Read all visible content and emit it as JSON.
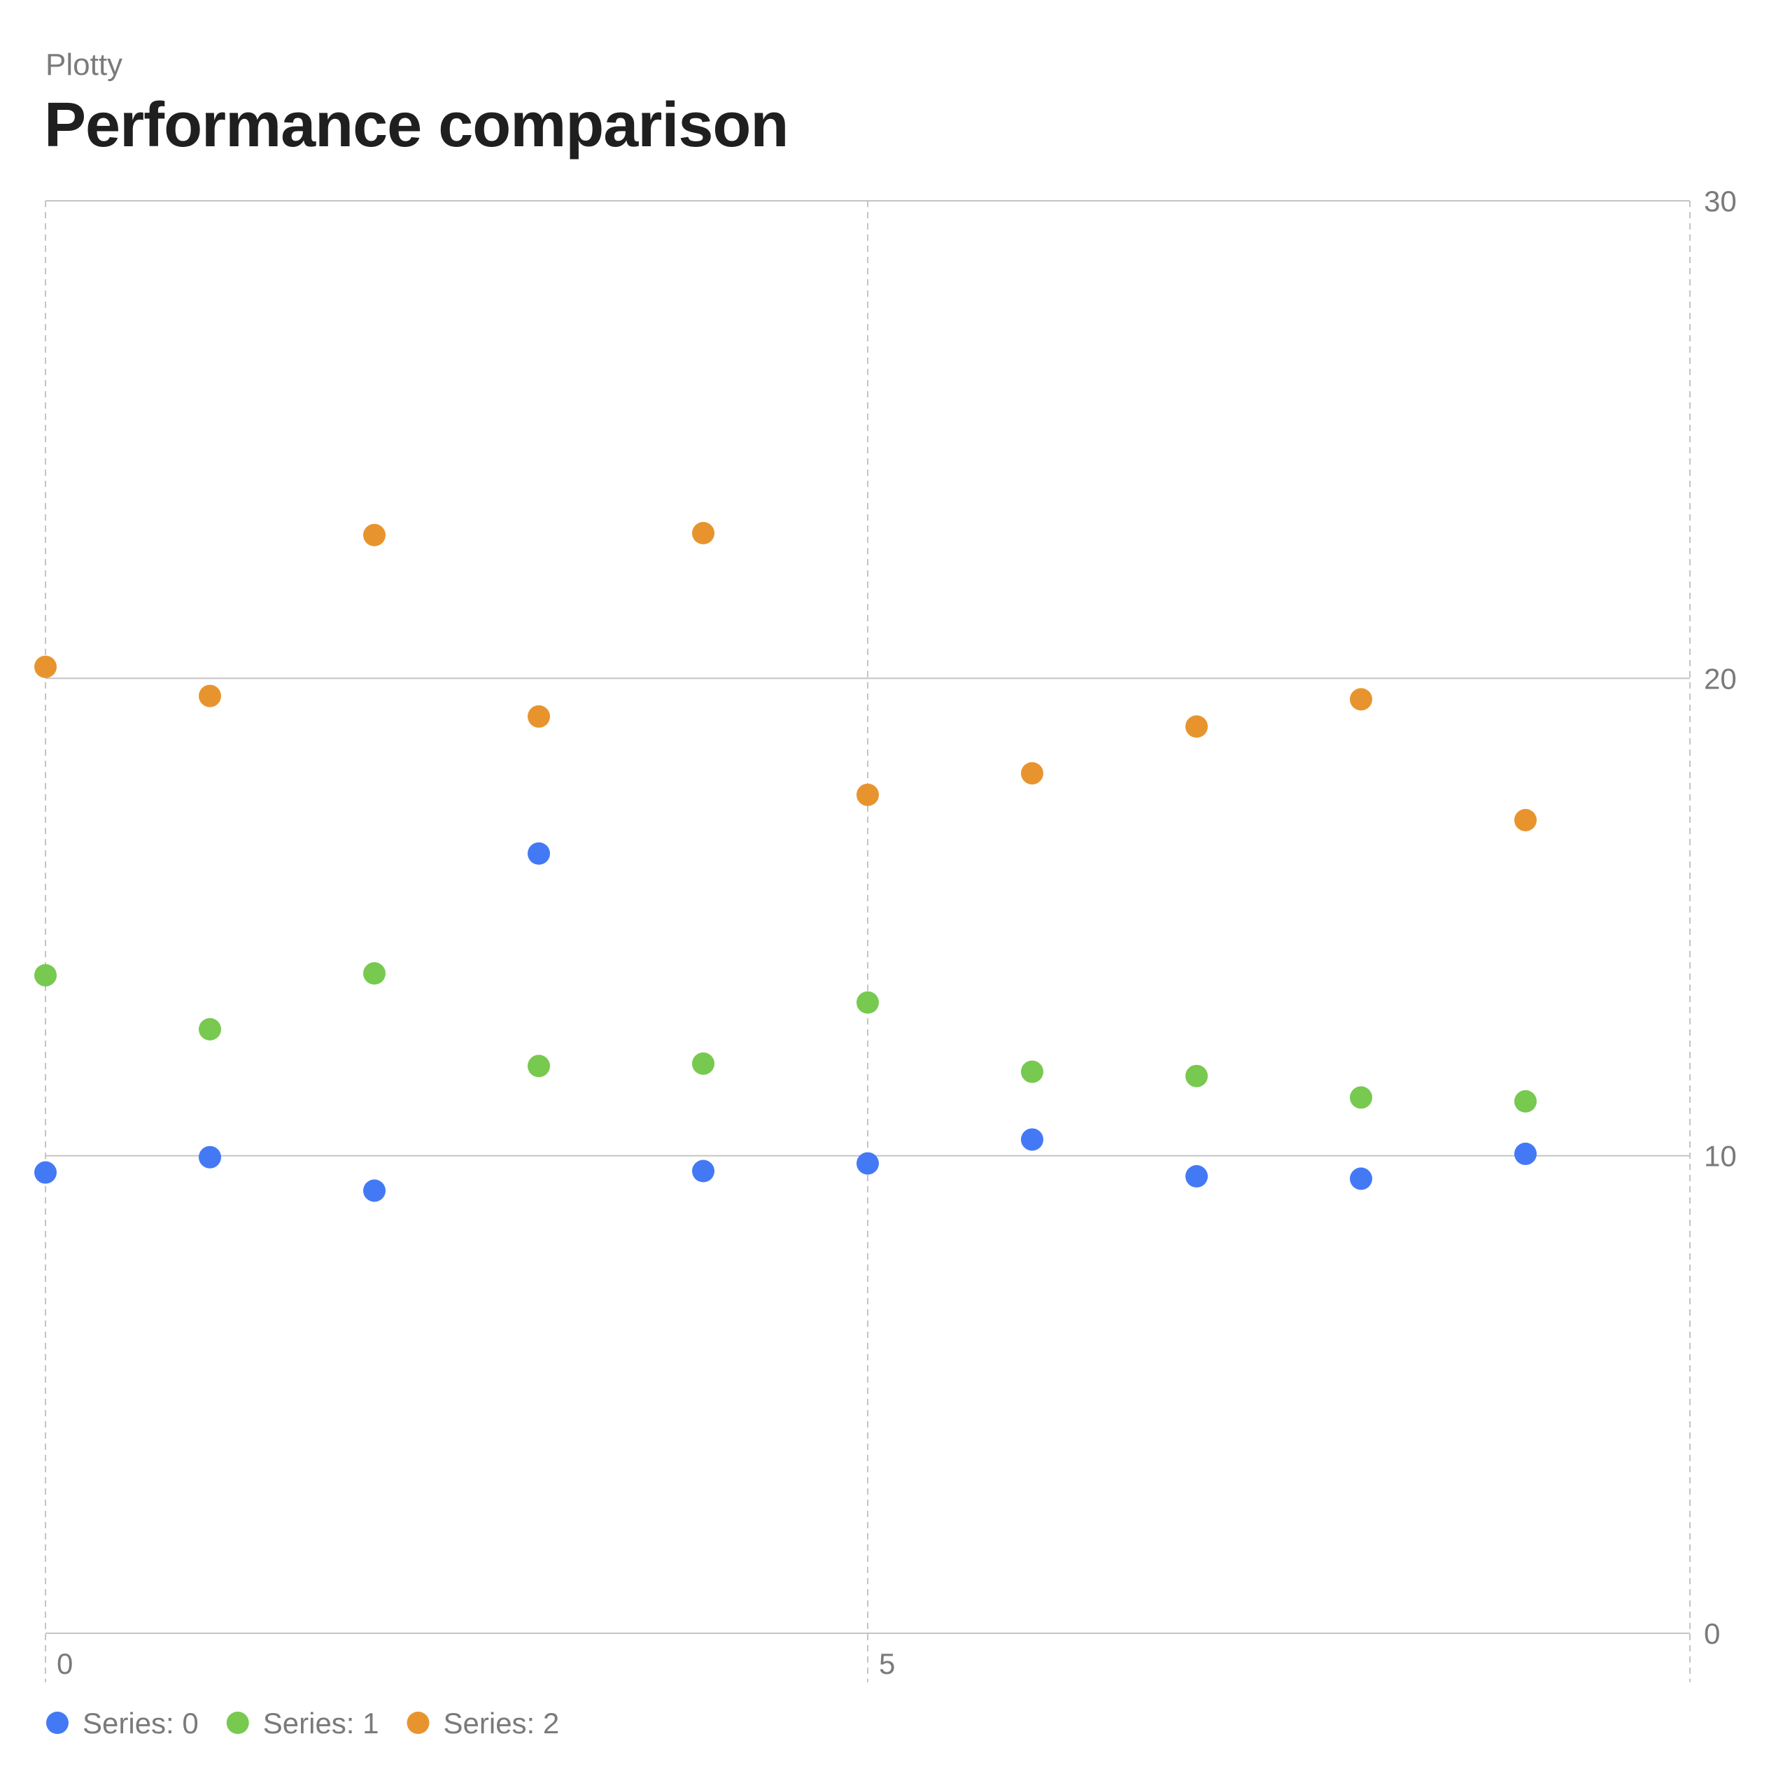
{
  "header": {
    "kicker": "Plotty",
    "title": "Performance comparison"
  },
  "chart_data": {
    "type": "scatter",
    "title": "Performance comparison",
    "xlabel": "",
    "ylabel": "",
    "xlim": [
      0,
      10
    ],
    "ylim": [
      0,
      30
    ],
    "x_ticks": [
      0,
      5
    ],
    "y_ticks": [
      0,
      10,
      20,
      30
    ],
    "y_axis_side": "right",
    "grid": true,
    "legend_position": "bottom-left",
    "series": [
      {
        "name": "Series: 0",
        "color": "#4479f6",
        "points": [
          [
            0,
            9.65
          ],
          [
            1,
            9.97
          ],
          [
            2,
            9.27
          ],
          [
            3,
            16.33
          ],
          [
            4,
            9.68
          ],
          [
            5,
            9.84
          ],
          [
            6,
            10.34
          ],
          [
            7,
            9.57
          ],
          [
            8,
            9.52
          ],
          [
            9,
            10.04
          ]
        ]
      },
      {
        "name": "Series: 1",
        "color": "#77c94f",
        "points": [
          [
            0,
            13.78
          ],
          [
            1,
            12.65
          ],
          [
            2,
            13.82
          ],
          [
            3,
            11.88
          ],
          [
            4,
            11.93
          ],
          [
            5,
            13.21
          ],
          [
            6,
            11.76
          ],
          [
            7,
            11.67
          ],
          [
            8,
            11.22
          ],
          [
            9,
            11.14
          ]
        ]
      },
      {
        "name": "Series: 2",
        "color": "#e8942e",
        "points": [
          [
            0,
            20.24
          ],
          [
            1,
            19.63
          ],
          [
            2,
            23.0
          ],
          [
            3,
            19.2
          ],
          [
            4,
            23.04
          ],
          [
            5,
            17.56
          ],
          [
            6,
            18.01
          ],
          [
            7,
            18.99
          ],
          [
            8,
            19.56
          ],
          [
            9,
            17.03
          ]
        ]
      }
    ]
  }
}
